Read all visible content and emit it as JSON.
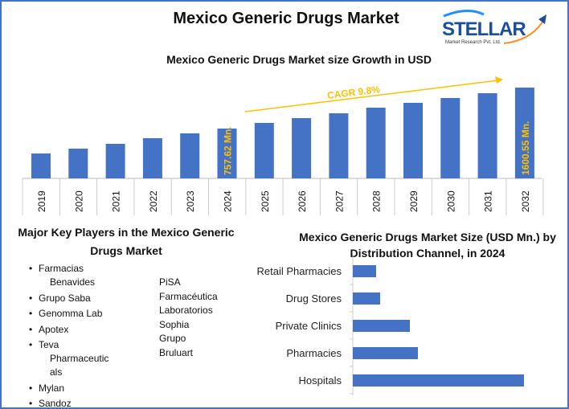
{
  "title": "Mexico Generic Drugs Market",
  "logo": {
    "text": "STELLAR",
    "tagline": "Market Research Pvt. Ltd."
  },
  "chart_data": [
    {
      "type": "bar",
      "title": "Mexico Generic Drugs Market size Growth in USD",
      "categories": [
        "2019",
        "2020",
        "2021",
        "2022",
        "2023",
        "2024",
        "2025",
        "2026",
        "2027",
        "2028",
        "2029",
        "2030",
        "2031",
        "2032"
      ],
      "values": [
        245,
        345,
        444,
        560,
        659,
        757.62,
        874,
        973,
        1072,
        1188,
        1287,
        1386,
        1485,
        1600.55
      ],
      "ylim": [
        -267,
        1750
      ],
      "grid": false,
      "color": "#4472c4",
      "annotations": [
        {
          "text": "757.62 Mn.",
          "category": "2024"
        },
        {
          "text": "1600.55 Mn.",
          "category": "2032"
        },
        {
          "text": "CAGR 9.8%"
        }
      ],
      "annotation_color": "#ffc000"
    },
    {
      "type": "bar",
      "orientation": "horizontal",
      "title": "Mexico Generic Drugs Market Size (USD Mn.) by Distribution Channel, in 2024",
      "categories": [
        "Retail Pharmacies",
        "Drug Stores",
        "Private Clinics",
        "Pharmacies",
        "Hospitals"
      ],
      "values": [
        29,
        34,
        71,
        81,
        213
      ],
      "color": "#4472c4"
    }
  ],
  "players": {
    "title": "Major Key Players in the Mexico Generic Drugs Market",
    "col1": [
      [
        "Farmacias",
        "Benavides"
      ],
      [
        "Grupo Saba"
      ],
      [
        "Genomma Lab"
      ],
      [
        "Apotex"
      ],
      [
        "Teva",
        "Pharmaceutic",
        "als"
      ],
      [
        "Mylan"
      ],
      [
        "Sandoz"
      ]
    ],
    "col2": [
      "PiSA",
      "Farmacéutica",
      "Laboratorios",
      "Sophia",
      "Grupo",
      "Bruluart"
    ]
  }
}
